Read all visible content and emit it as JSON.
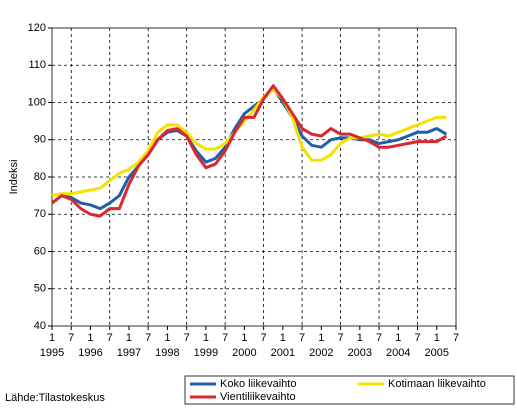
{
  "chart_data": {
    "type": "line",
    "y_label": "Indeksi",
    "source": "Lähde:Tilastokeskus",
    "x": [
      1995,
      1995.25,
      1995.5,
      1995.75,
      1996,
      1996.25,
      1996.5,
      1996.75,
      1997,
      1997.25,
      1997.5,
      1997.75,
      1998,
      1998.25,
      1998.5,
      1998.75,
      1999,
      1999.25,
      1999.5,
      1999.75,
      2000,
      2000.25,
      2000.5,
      2000.75,
      2001,
      2001.25,
      2001.5,
      2001.75,
      2002,
      2002.25,
      2002.5,
      2002.75,
      2003,
      2003.25,
      2003.5,
      2003.75,
      2004,
      2004.25,
      2004.5,
      2004.75,
      2005,
      2005.25
    ],
    "series": [
      {
        "name": "Koko liikevaihto",
        "color": "#1f5fa8",
        "values": [
          73,
          75,
          74.5,
          73,
          72.5,
          71.5,
          73,
          75,
          80,
          83,
          86,
          90,
          92,
          92.5,
          91,
          87,
          84,
          85,
          88,
          93,
          97,
          99,
          101,
          104,
          100,
          96,
          91,
          88.5,
          88,
          90,
          90.5,
          90.5,
          90,
          90,
          89,
          89.5,
          90,
          91,
          92,
          92,
          93,
          91.5
        ]
      },
      {
        "name": "Kotimaan liikevaihto",
        "color": "#f5e100",
        "values": [
          75,
          75.5,
          75.5,
          76,
          76.5,
          77,
          79,
          81,
          82,
          84,
          87,
          92,
          94,
          94,
          92,
          89,
          87.5,
          87.5,
          89,
          92,
          95,
          98,
          101.5,
          103.5,
          101,
          96,
          88,
          84.5,
          84.5,
          86,
          89,
          90.5,
          90.5,
          91,
          91.5,
          91,
          92,
          93,
          94,
          95,
          96,
          96
        ]
      },
      {
        "name": "Vientiliikevaihto",
        "color": "#d9282f",
        "values": [
          73,
          75,
          74,
          71.5,
          70,
          69.5,
          71.5,
          71.5,
          78,
          83,
          86,
          90,
          92.5,
          93,
          91,
          86,
          82.5,
          83.5,
          87,
          92,
          96,
          96,
          101,
          104.5,
          101,
          97,
          93,
          91.5,
          91,
          93,
          91.5,
          91.5,
          90.5,
          89.5,
          88,
          88,
          88.5,
          89,
          89.5,
          89.5,
          89.5,
          91
        ]
      }
    ],
    "xlim": [
      1995,
      2005.5
    ],
    "xticks": [
      {
        "value": 1995,
        "label": "1"
      },
      {
        "value": 1995.5,
        "label": "7"
      },
      {
        "value": 1996,
        "label": "1"
      },
      {
        "value": 1996.5,
        "label": "7"
      },
      {
        "value": 1997,
        "label": "1"
      },
      {
        "value": 1997.5,
        "label": "7"
      },
      {
        "value": 1998,
        "label": "1"
      },
      {
        "value": 1998.5,
        "label": "7"
      },
      {
        "value": 1999,
        "label": "1"
      },
      {
        "value": 1999.5,
        "label": "7"
      },
      {
        "value": 2000,
        "label": "1"
      },
      {
        "value": 2000.5,
        "label": "7"
      },
      {
        "value": 2001,
        "label": "1"
      },
      {
        "value": 2001.5,
        "label": "7"
      },
      {
        "value": 2002,
        "label": "1"
      },
      {
        "value": 2002.5,
        "label": "7"
      },
      {
        "value": 2003,
        "label": "1"
      },
      {
        "value": 2003.5,
        "label": "7"
      },
      {
        "value": 2004,
        "label": "1"
      },
      {
        "value": 2004.5,
        "label": "7"
      },
      {
        "value": 2005,
        "label": "1"
      },
      {
        "value": 2005.5,
        "label": "7"
      }
    ],
    "year_labels": [
      1995,
      1996,
      1997,
      1998,
      1999,
      2000,
      2001,
      2002,
      2003,
      2004,
      2005
    ],
    "ylim": [
      40,
      120
    ],
    "yticks": [
      40,
      50,
      60,
      70,
      80,
      90,
      100,
      110,
      120
    ],
    "grid": true
  }
}
